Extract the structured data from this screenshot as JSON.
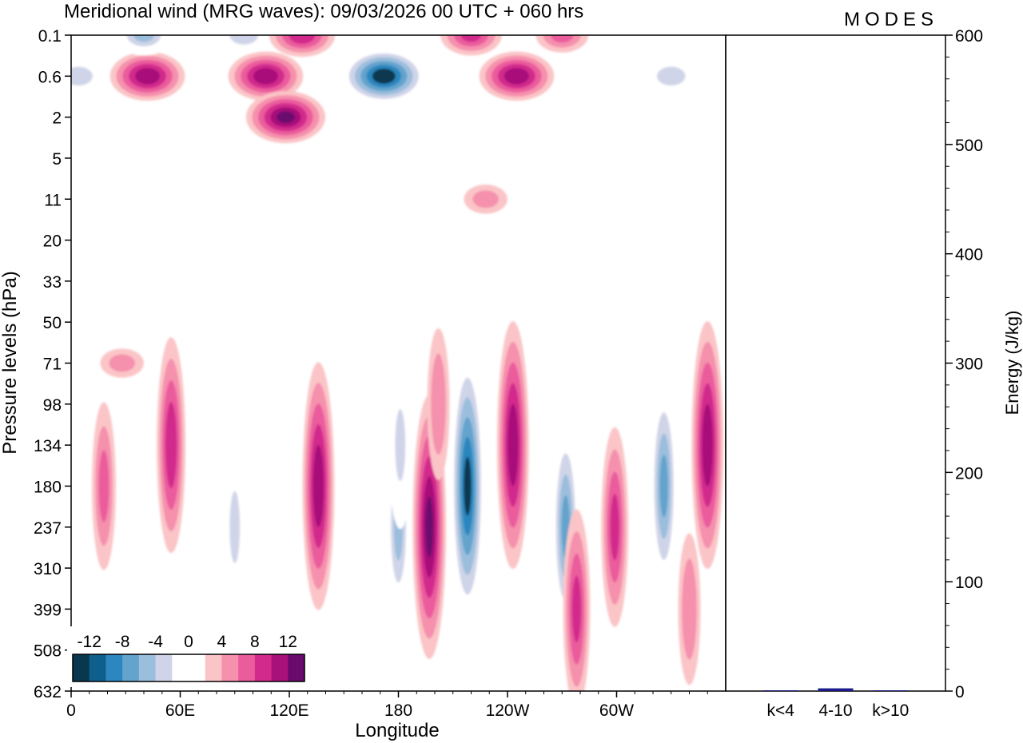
{
  "chart_data": {
    "type": "heatmap",
    "title": "Meridional wind (MRG waves):  09/03/2026  00 UTC  + 060 hrs",
    "logo": "MODES",
    "xlabel": "Longitude",
    "ylabel": "Pressure levels (hPa)",
    "x_ticks": [
      "0",
      "60E",
      "120E",
      "180",
      "120W",
      "60W"
    ],
    "y_ticks": [
      "0.1",
      "0.6",
      "2",
      "5",
      "11",
      "20",
      "33",
      "50",
      "71",
      "98",
      "134",
      "180",
      "237",
      "310",
      "399",
      "508",
      "632"
    ],
    "colorbar": {
      "labels": [
        "-12",
        "-8",
        "-4",
        "0",
        "4",
        "8",
        "12"
      ],
      "levels": [
        -14,
        -12,
        -10,
        -8,
        -6,
        -4,
        -2,
        2,
        4,
        6,
        8,
        10,
        12,
        14
      ],
      "colors": [
        "#08374f",
        "#0f5f8c",
        "#2c86bf",
        "#63a3cc",
        "#9cbedd",
        "#cfd4e8",
        "#ffffff",
        "#ffffff",
        "#fbc5c7",
        "#f590ad",
        "#eb5c9d",
        "#d22a8c",
        "#a8107a",
        "#6a0a6e"
      ]
    },
    "energy_bar": {
      "ylabel": "Energy (J/kg)",
      "ylim": [
        0,
        600
      ],
      "y_ticks": [
        "0",
        "100",
        "200",
        "300",
        "400",
        "500",
        "600"
      ],
      "categories": [
        "k<4",
        "4-10",
        "k>10"
      ],
      "values": [
        0.3,
        2.5,
        0.2
      ],
      "bar_color": "#1a1a8c"
    },
    "features": [
      {
        "lon": 172,
        "lev": "0.6",
        "value": -15
      },
      {
        "lon": 42,
        "lev": "0.6",
        "value": 11
      },
      {
        "lon": 107,
        "lev": "0.6",
        "value": 11
      },
      {
        "lon": 118,
        "lev": "2",
        "value": 12
      },
      {
        "lon": 245,
        "lev": "0.6",
        "value": 11
      },
      {
        "lon": 40,
        "lev": "0.1",
        "value": -8
      },
      {
        "lon": 95,
        "lev": "0.1",
        "value": -7
      },
      {
        "lon": 330,
        "lev": "0.6",
        "value": -7
      },
      {
        "lon": 4,
        "lev": "0.6",
        "value": -7
      },
      {
        "lon": 127,
        "lev": "0.1",
        "value": 9
      },
      {
        "lon": 220,
        "lev": "0.1",
        "value": 8
      },
      {
        "lon": 270,
        "lev": "0.1",
        "value": 6
      },
      {
        "lon": 285,
        "lev": "5",
        "value": -5
      },
      {
        "lon": 225,
        "lev": "5",
        "value": -5
      },
      {
        "lon": 228,
        "lev": "11",
        "value": 4
      },
      {
        "lon": 112,
        "lev": "11",
        "value": -4
      },
      {
        "lon": 180,
        "lev": "237",
        "value": -8
      },
      {
        "lon": 181,
        "lev": "134",
        "value": -6
      },
      {
        "lon": 197,
        "lev": "237",
        "value": 12
      },
      {
        "lon": 218,
        "lev": "180",
        "value": -14
      },
      {
        "lon": 243,
        "lev": "134",
        "value": 11
      },
      {
        "lon": 272,
        "lev": "237",
        "value": -10
      },
      {
        "lon": 299,
        "lev": "237",
        "value": 8
      },
      {
        "lon": 326,
        "lev": "180",
        "value": -10
      },
      {
        "lon": 350,
        "lev": "134",
        "value": 11
      },
      {
        "lon": 136,
        "lev": "180",
        "value": 11
      },
      {
        "lon": 55,
        "lev": "134",
        "value": 9
      },
      {
        "lon": 18,
        "lev": "180",
        "value": 6
      },
      {
        "lon": 32,
        "lev": "180",
        "value": -5
      },
      {
        "lon": 90,
        "lev": "237",
        "value": -6
      },
      {
        "lon": 278,
        "lev": "399",
        "value": 8
      },
      {
        "lon": 315,
        "lev": "399",
        "value": -5
      },
      {
        "lon": 340,
        "lev": "399",
        "value": 5
      },
      {
        "lon": 28,
        "lev": "71",
        "value": 4
      },
      {
        "lon": 202,
        "lev": "98",
        "value": 5
      },
      {
        "lon": 75,
        "lev": "50",
        "value": -3
      },
      {
        "lon": 322,
        "lev": "71",
        "value": -3
      }
    ]
  }
}
